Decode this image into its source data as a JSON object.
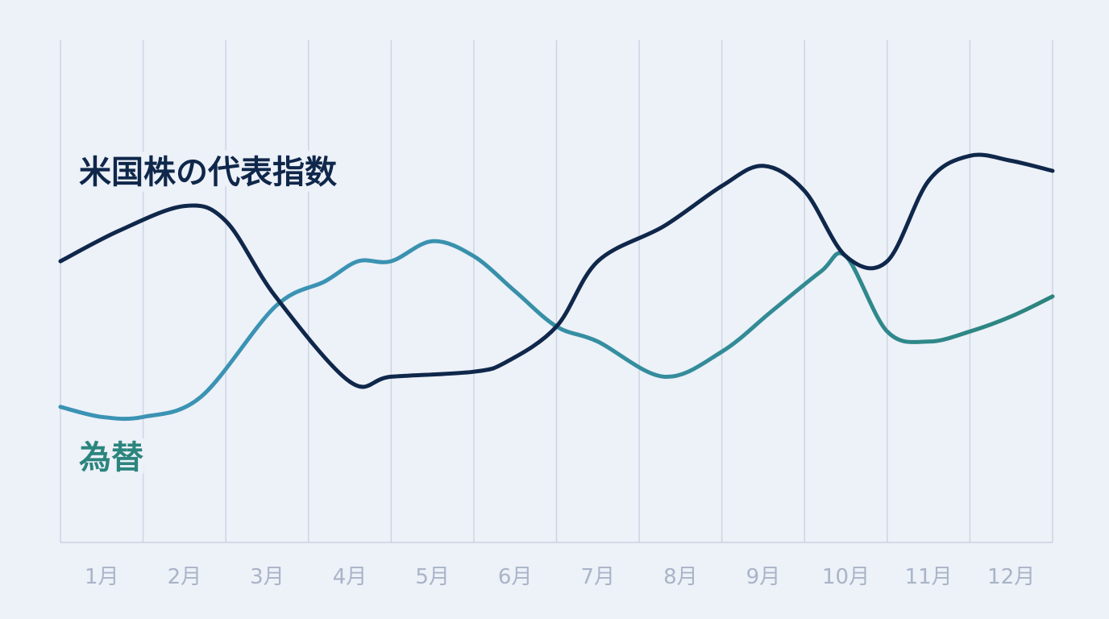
{
  "chart_data": {
    "type": "line",
    "categories": [
      "1月",
      "2月",
      "3月",
      "4月",
      "5月",
      "6月",
      "7月",
      "8月",
      "9月",
      "10月",
      "11月",
      "12月"
    ],
    "ylim": [
      0,
      100
    ],
    "grid": {
      "vertical": true,
      "horizontal": false
    },
    "legend": "inline",
    "series": [
      {
        "name": "米国株の代表指数",
        "color": "#0f274a",
        "x": [
          0,
          0.7,
          1.5,
          2.0,
          2.6,
          3.5,
          4.0,
          5.0,
          5.4,
          6.0,
          6.5,
          7.3,
          8.0,
          8.5,
          9.0,
          9.5,
          10.0,
          10.5,
          11.0,
          11.5,
          12.0
        ],
        "values": [
          56,
          62,
          67,
          64,
          49,
          32,
          33,
          34,
          36,
          43,
          56,
          63,
          71,
          75,
          70,
          57,
          56,
          72,
          77,
          76,
          74
        ]
      },
      {
        "name": "為替",
        "color": "#2b857e",
        "color_start": "#3b93b4",
        "x": [
          0,
          0.5,
          1.0,
          1.7,
          2.6,
          3.2,
          3.6,
          4.0,
          4.5,
          5.0,
          5.5,
          6.0,
          6.5,
          7.3,
          8.0,
          8.6,
          9.2,
          9.5,
          10.0,
          10.5,
          11.0,
          11.5,
          12.0
        ],
        "values": [
          27,
          25,
          25,
          29,
          47,
          52,
          56,
          56,
          60,
          57,
          50,
          43,
          40,
          33,
          38,
          46,
          54,
          57,
          42,
          40,
          42,
          45,
          49
        ]
      }
    ]
  }
}
